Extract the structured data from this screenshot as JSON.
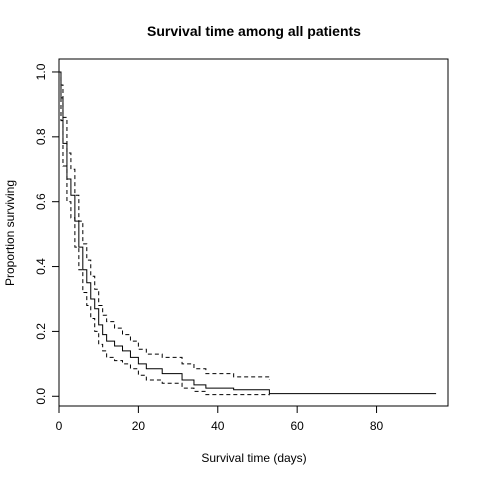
{
  "chart_data": {
    "type": "line",
    "title": "Survival time among all patients",
    "xlabel": "Survival time (days)",
    "ylabel": "Proportion surviving",
    "xlim": [
      0,
      98
    ],
    "ylim": [
      -0.03,
      1.04
    ],
    "x_ticks": [
      0,
      20,
      40,
      60,
      80
    ],
    "x_tick_labels": [
      "0",
      "20",
      "40",
      "60",
      "80"
    ],
    "y_ticks": [
      0.0,
      0.2,
      0.4,
      0.6,
      0.8,
      1.0
    ],
    "y_tick_labels": [
      "0.0",
      "0.2",
      "0.4",
      "0.6",
      "0.8",
      "1.0"
    ],
    "grid": false,
    "legend": "none",
    "colors": {
      "line": "#000000"
    },
    "series": [
      {
        "style": "solid",
        "steps": [
          [
            0,
            1.0
          ],
          [
            0.5,
            0.92
          ],
          [
            1,
            0.78
          ],
          [
            2,
            0.67
          ],
          [
            3,
            0.62
          ],
          [
            4,
            0.54
          ],
          [
            5,
            0.46
          ],
          [
            6,
            0.39
          ],
          [
            7,
            0.35
          ],
          [
            8,
            0.3
          ],
          [
            9,
            0.27
          ],
          [
            10,
            0.22
          ],
          [
            11,
            0.19
          ],
          [
            12,
            0.17
          ],
          [
            14,
            0.155
          ],
          [
            16,
            0.14
          ],
          [
            18,
            0.12
          ],
          [
            20,
            0.1
          ],
          [
            22,
            0.085
          ],
          [
            26,
            0.07
          ],
          [
            31,
            0.05
          ],
          [
            34,
            0.035
          ],
          [
            37,
            0.025
          ],
          [
            44,
            0.02
          ],
          [
            53,
            0.008
          ],
          [
            95,
            0.008
          ]
        ]
      },
      {
        "style": "dashed",
        "steps": [
          [
            0,
            1.0
          ],
          [
            0.5,
            0.96
          ],
          [
            1,
            0.86
          ],
          [
            2,
            0.75
          ],
          [
            3,
            0.7
          ],
          [
            4,
            0.62
          ],
          [
            5,
            0.54
          ],
          [
            6,
            0.47
          ],
          [
            7,
            0.42
          ],
          [
            8,
            0.37
          ],
          [
            9,
            0.33
          ],
          [
            10,
            0.28
          ],
          [
            11,
            0.25
          ],
          [
            12,
            0.23
          ],
          [
            14,
            0.21
          ],
          [
            16,
            0.19
          ],
          [
            18,
            0.17
          ],
          [
            20,
            0.145
          ],
          [
            22,
            0.13
          ],
          [
            26,
            0.12
          ],
          [
            31,
            0.1
          ],
          [
            34,
            0.085
          ],
          [
            37,
            0.07
          ],
          [
            44,
            0.06
          ],
          [
            53,
            0.05
          ]
        ]
      },
      {
        "style": "dashed",
        "steps": [
          [
            0,
            1.0
          ],
          [
            0.5,
            0.85
          ],
          [
            1,
            0.71
          ],
          [
            2,
            0.6
          ],
          [
            3,
            0.55
          ],
          [
            4,
            0.46
          ],
          [
            5,
            0.39
          ],
          [
            6,
            0.32
          ],
          [
            7,
            0.28
          ],
          [
            8,
            0.24
          ],
          [
            9,
            0.2
          ],
          [
            10,
            0.16
          ],
          [
            11,
            0.14
          ],
          [
            12,
            0.12
          ],
          [
            14,
            0.11
          ],
          [
            16,
            0.1
          ],
          [
            18,
            0.085
          ],
          [
            20,
            0.065
          ],
          [
            22,
            0.05
          ],
          [
            26,
            0.04
          ],
          [
            31,
            0.025
          ],
          [
            34,
            0.015
          ],
          [
            37,
            0.005
          ],
          [
            44,
            0.005
          ],
          [
            53,
            0.003
          ]
        ]
      }
    ]
  }
}
